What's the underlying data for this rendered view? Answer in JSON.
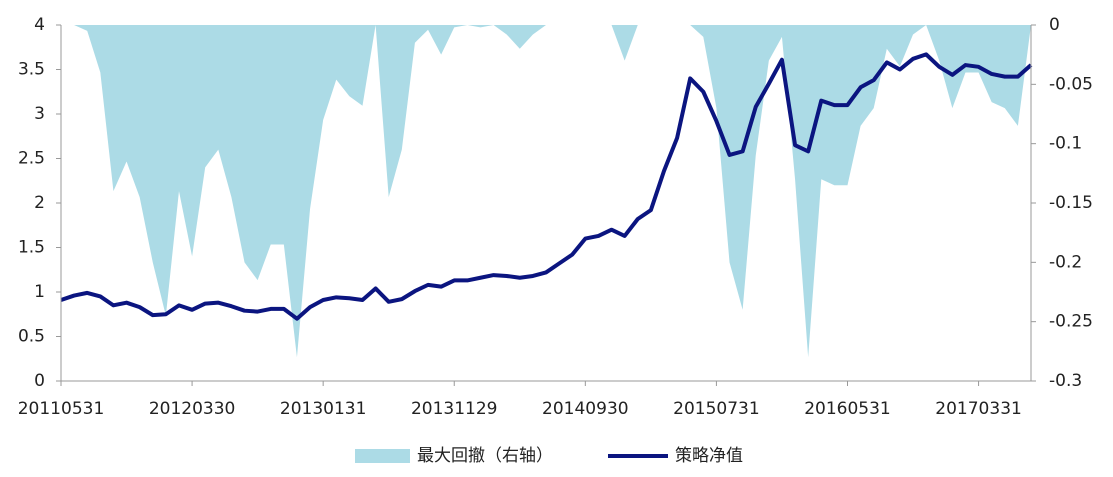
{
  "chart_data": {
    "type": "line",
    "categories": [
      "20110531",
      null,
      null,
      null,
      null,
      null,
      null,
      null,
      null,
      null,
      "20120330",
      null,
      null,
      null,
      null,
      null,
      null,
      null,
      null,
      null,
      "20130131",
      null,
      null,
      null,
      null,
      null,
      null,
      null,
      null,
      null,
      "20131129",
      null,
      null,
      null,
      null,
      null,
      null,
      null,
      null,
      null,
      "20140930",
      null,
      null,
      null,
      null,
      null,
      null,
      null,
      null,
      null,
      "20150731",
      null,
      null,
      null,
      null,
      null,
      null,
      null,
      null,
      null,
      "20160531",
      null,
      null,
      null,
      null,
      null,
      null,
      null,
      null,
      null,
      "20170331",
      null,
      null,
      null,
      null
    ],
    "series": [
      {
        "name": "最大回撤（右轴）",
        "type": "area",
        "axis": "y2",
        "color": "#acdbe6",
        "values": [
          0,
          0,
          -0.005,
          -0.04,
          -0.14,
          -0.115,
          -0.145,
          -0.2,
          -0.245,
          -0.14,
          -0.195,
          -0.12,
          -0.105,
          -0.145,
          -0.2,
          -0.215,
          -0.185,
          -0.185,
          -0.28,
          -0.155,
          -0.08,
          -0.046,
          -0.06,
          -0.068,
          0,
          -0.145,
          -0.105,
          -0.015,
          -0.004,
          -0.025,
          -0.002,
          0,
          -0.002,
          0,
          -0.008,
          -0.02,
          -0.008,
          0,
          0,
          0,
          0,
          0,
          0,
          -0.03,
          0,
          0,
          0,
          0,
          0,
          -0.01,
          -0.07,
          -0.2,
          -0.24,
          -0.11,
          -0.03,
          -0.01,
          -0.13,
          -0.28,
          -0.13,
          -0.135,
          -0.135,
          -0.085,
          -0.07,
          -0.02,
          -0.035,
          -0.008,
          0,
          -0.03,
          -0.07,
          -0.04,
          -0.04,
          -0.065,
          -0.07,
          -0.085,
          0
        ]
      },
      {
        "name": "策略净值",
        "type": "line",
        "color": "#0b1580",
        "values": [
          0.91,
          0.96,
          0.99,
          0.95,
          0.85,
          0.88,
          0.83,
          0.74,
          0.75,
          0.85,
          0.8,
          0.87,
          0.88,
          0.84,
          0.79,
          0.78,
          0.81,
          0.81,
          0.7,
          0.83,
          0.91,
          0.94,
          0.93,
          0.91,
          1.04,
          0.89,
          0.92,
          1.01,
          1.08,
          1.06,
          1.13,
          1.13,
          1.16,
          1.19,
          1.18,
          1.16,
          1.18,
          1.22,
          1.32,
          1.42,
          1.6,
          1.63,
          1.7,
          1.63,
          1.82,
          1.92,
          2.36,
          2.73,
          3.4,
          3.25,
          2.92,
          2.54,
          2.58,
          3.08,
          3.34,
          3.61,
          2.65,
          2.58,
          3.15,
          3.1,
          3.1,
          3.3,
          3.38,
          3.58,
          3.5,
          3.62,
          3.67,
          3.53,
          3.44,
          3.55,
          3.53,
          3.45,
          3.42,
          3.42,
          3.55
        ]
      }
    ],
    "ylim": [
      0,
      4
    ],
    "yticks": [
      0,
      0.5,
      1,
      1.5,
      2,
      2.5,
      3,
      3.5,
      4
    ],
    "y2lim": [
      -0.3,
      0
    ],
    "y2ticks": [
      0,
      -0.05,
      -0.1,
      -0.15,
      -0.2,
      -0.25,
      -0.3
    ],
    "legend": "bottom"
  }
}
